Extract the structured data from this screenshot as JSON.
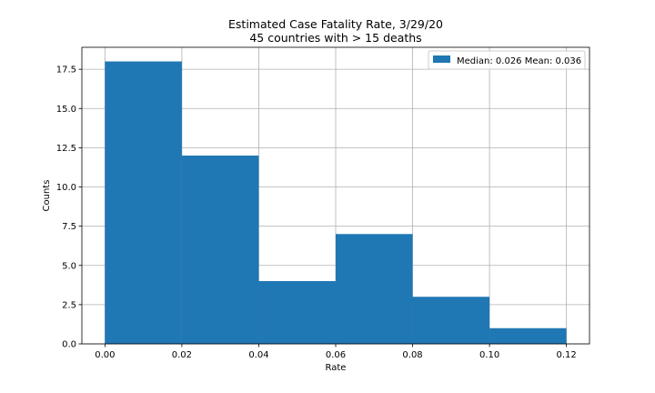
{
  "colors": {
    "bar_fill": "#1f77b4",
    "grid": "#b0b0b0",
    "axis": "#000000",
    "background": "#ffffff",
    "legend_border": "#cccccc"
  },
  "chart_data": {
    "type": "bar",
    "title": "Estimated Case Fatality Rate, 3/29/20",
    "subtitle": "45 countries with > 15 deaths",
    "xlabel": "Rate",
    "ylabel": "Counts",
    "bin_edges": [
      0.0,
      0.02,
      0.04,
      0.06,
      0.08,
      0.1,
      0.12
    ],
    "values": [
      18,
      12,
      4,
      7,
      3,
      1
    ],
    "xlim": [
      -0.006,
      0.126
    ],
    "ylim": [
      0,
      18.9
    ],
    "x_ticks": [
      0.0,
      0.02,
      0.04,
      0.06,
      0.08,
      0.1,
      0.12
    ],
    "x_tick_labels": [
      "0.00",
      "0.02",
      "0.04",
      "0.06",
      "0.08",
      "0.10",
      "0.12"
    ],
    "y_ticks": [
      0.0,
      2.5,
      5.0,
      7.5,
      10.0,
      12.5,
      15.0,
      17.5
    ],
    "y_tick_labels": [
      "0.0",
      "2.5",
      "5.0",
      "7.5",
      "10.0",
      "12.5",
      "15.0",
      "17.5"
    ],
    "grid": true,
    "legend": {
      "placement": "top-right",
      "entries": [
        {
          "label": "Median: 0.026 Mean: 0.036",
          "color": "#1f77b4"
        }
      ]
    }
  }
}
